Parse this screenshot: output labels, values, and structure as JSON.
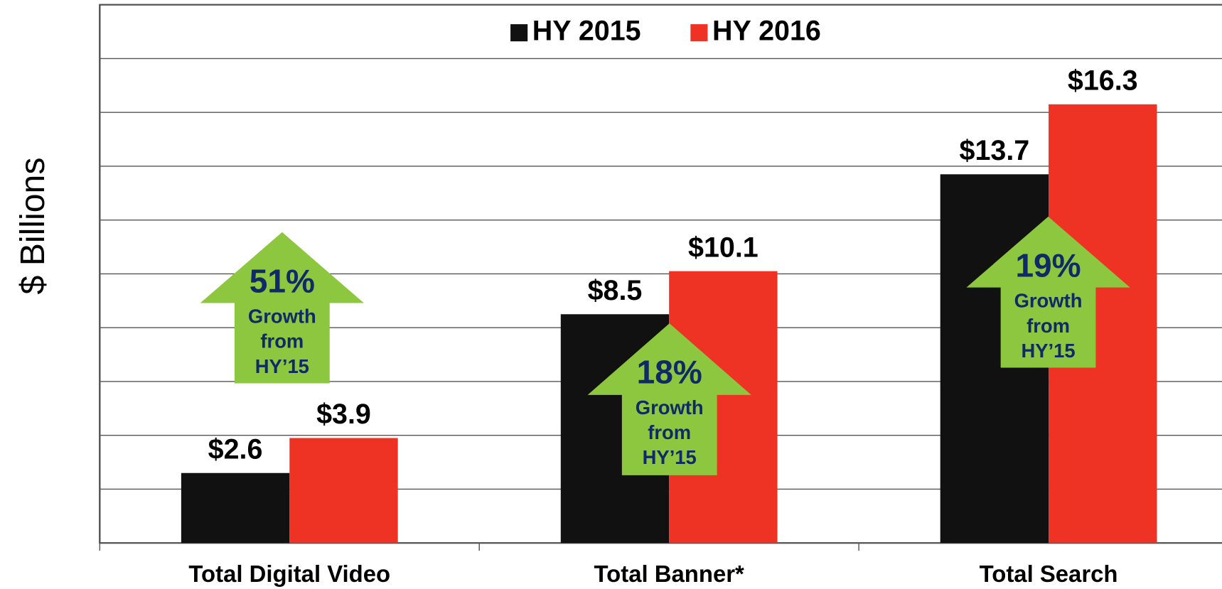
{
  "chart_data": {
    "type": "bar",
    "y_label": "$ Billions",
    "categories": [
      "Total Digital Video",
      "Total Banner*",
      "Total Search"
    ],
    "series": [
      {
        "name": "HY 2015",
        "color": "#111111",
        "values": [
          2.6,
          8.5,
          13.7
        ],
        "value_labels": [
          "$2.6",
          "$8.5",
          "$13.7"
        ]
      },
      {
        "name": "HY 2016",
        "color": "#ee3224",
        "values": [
          3.9,
          10.1,
          16.3
        ],
        "value_labels": [
          "$3.9",
          "$10.1",
          "$16.3"
        ]
      }
    ],
    "ylim": [
      0,
      20
    ],
    "yticks": [
      0,
      2,
      4,
      6,
      8,
      10,
      12,
      14,
      16,
      18,
      20
    ],
    "grid": true,
    "annotations": [
      {
        "percent": "51%",
        "lines": [
          "Growth",
          "from",
          "HY’15"
        ]
      },
      {
        "percent": "18%",
        "lines": [
          "Growth",
          "from",
          "HY’15"
        ]
      },
      {
        "percent": "19%",
        "lines": [
          "Growth",
          "from",
          "HY’15"
        ]
      }
    ]
  }
}
